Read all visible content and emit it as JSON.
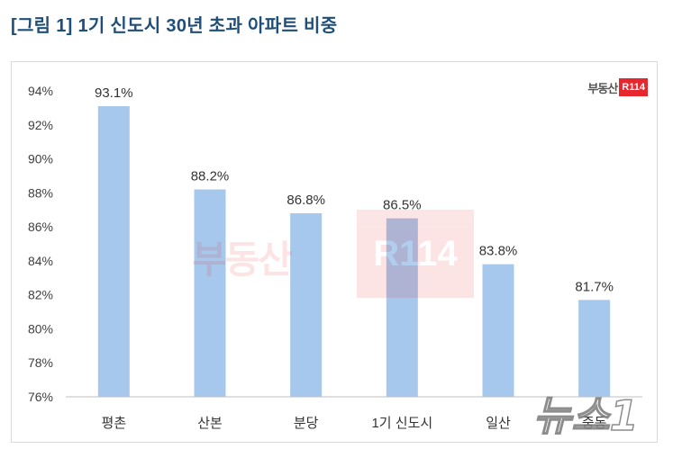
{
  "logo": {
    "text": "부동산",
    "badge": "R114"
  },
  "watermark": {
    "text": "부동산",
    "badge": "R114"
  },
  "news_watermark": "뉴스1",
  "colors": {
    "title": "#1F4E79",
    "bar": "#A6C8EC",
    "badge": "#E8262D",
    "axis": "#BFBFBF"
  },
  "chart_data": {
    "type": "bar",
    "title": "[그림 1] 1기 신도시 30년 초과 아파트 비중",
    "categories": [
      "평촌",
      "산본",
      "분당",
      "1기 신도시",
      "일산",
      "중동"
    ],
    "values": [
      93.1,
      88.2,
      86.8,
      86.5,
      83.8,
      81.7
    ],
    "data_labels": [
      "93.1%",
      "88.2%",
      "86.8%",
      "86.5%",
      "83.8%",
      "81.7%"
    ],
    "ylim": [
      76,
      94
    ],
    "yticks": [
      76,
      78,
      80,
      82,
      84,
      86,
      88,
      90,
      92,
      94
    ],
    "ytick_labels": [
      "76%",
      "78%",
      "80%",
      "82%",
      "84%",
      "86%",
      "88%",
      "90%",
      "92%",
      "94%"
    ],
    "grid": false
  }
}
